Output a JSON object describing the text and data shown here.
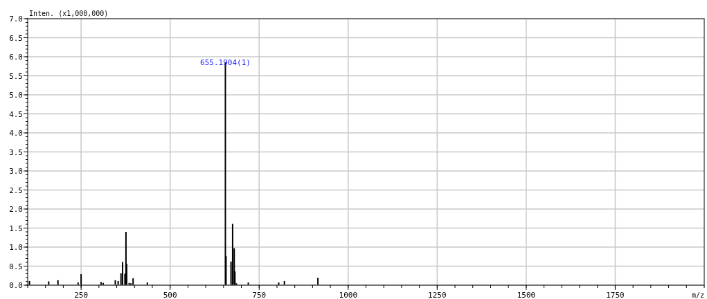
{
  "chart_data": {
    "type": "bar",
    "ylabel": "Inten. (x1,000,000)",
    "xlabel": "m/z",
    "x": [
      105,
      159,
      185,
      241.5,
      250,
      306,
      312,
      346,
      354,
      362,
      366.5,
      373,
      376,
      378,
      385,
      390,
      396,
      436,
      655.19,
      657,
      671,
      675.5,
      680,
      682,
      686,
      719.5,
      805,
      821,
      915
    ],
    "values": [
      0.11,
      0.1,
      0.13,
      0.07,
      0.29,
      0.08,
      0.06,
      0.13,
      0.11,
      0.31,
      0.61,
      0.3,
      1.4,
      0.56,
      0.06,
      0.05,
      0.18,
      0.07,
      5.85,
      0.76,
      0.62,
      1.61,
      0.97,
      0.36,
      0.05,
      0.07,
      0.07,
      0.11,
      0.19
    ],
    "color": "#000000",
    "xlim": [
      100,
      2000
    ],
    "xticks": [
      250,
      500,
      750,
      1000,
      1250,
      1500,
      1750
    ],
    "ylim": [
      0,
      7
    ],
    "yticks": [
      {
        "value": 0,
        "label": "0.0"
      },
      {
        "value": 0.5,
        "label": "0.5"
      },
      {
        "value": 1,
        "label": "1.0"
      },
      {
        "value": 1.5,
        "label": "1.5"
      },
      {
        "value": 2,
        "label": "2.0"
      },
      {
        "value": 2.5,
        "label": "2.5"
      },
      {
        "value": 3,
        "label": "3.0"
      },
      {
        "value": 3.5,
        "label": "3.5"
      },
      {
        "value": 4,
        "label": "4.0"
      },
      {
        "value": 4.5,
        "label": "4.5"
      },
      {
        "value": 5,
        "label": "5.0"
      },
      {
        "value": 5.5,
        "label": "5.5"
      },
      {
        "value": 6,
        "label": "6.0"
      },
      {
        "value": 6.5,
        "label": "6.5"
      },
      {
        "value": 7,
        "label": "7.0"
      }
    ],
    "grid": true,
    "annotations": [
      {
        "text": "655.1904(1)",
        "x": 655.19,
        "y": 5.85
      }
    ]
  }
}
